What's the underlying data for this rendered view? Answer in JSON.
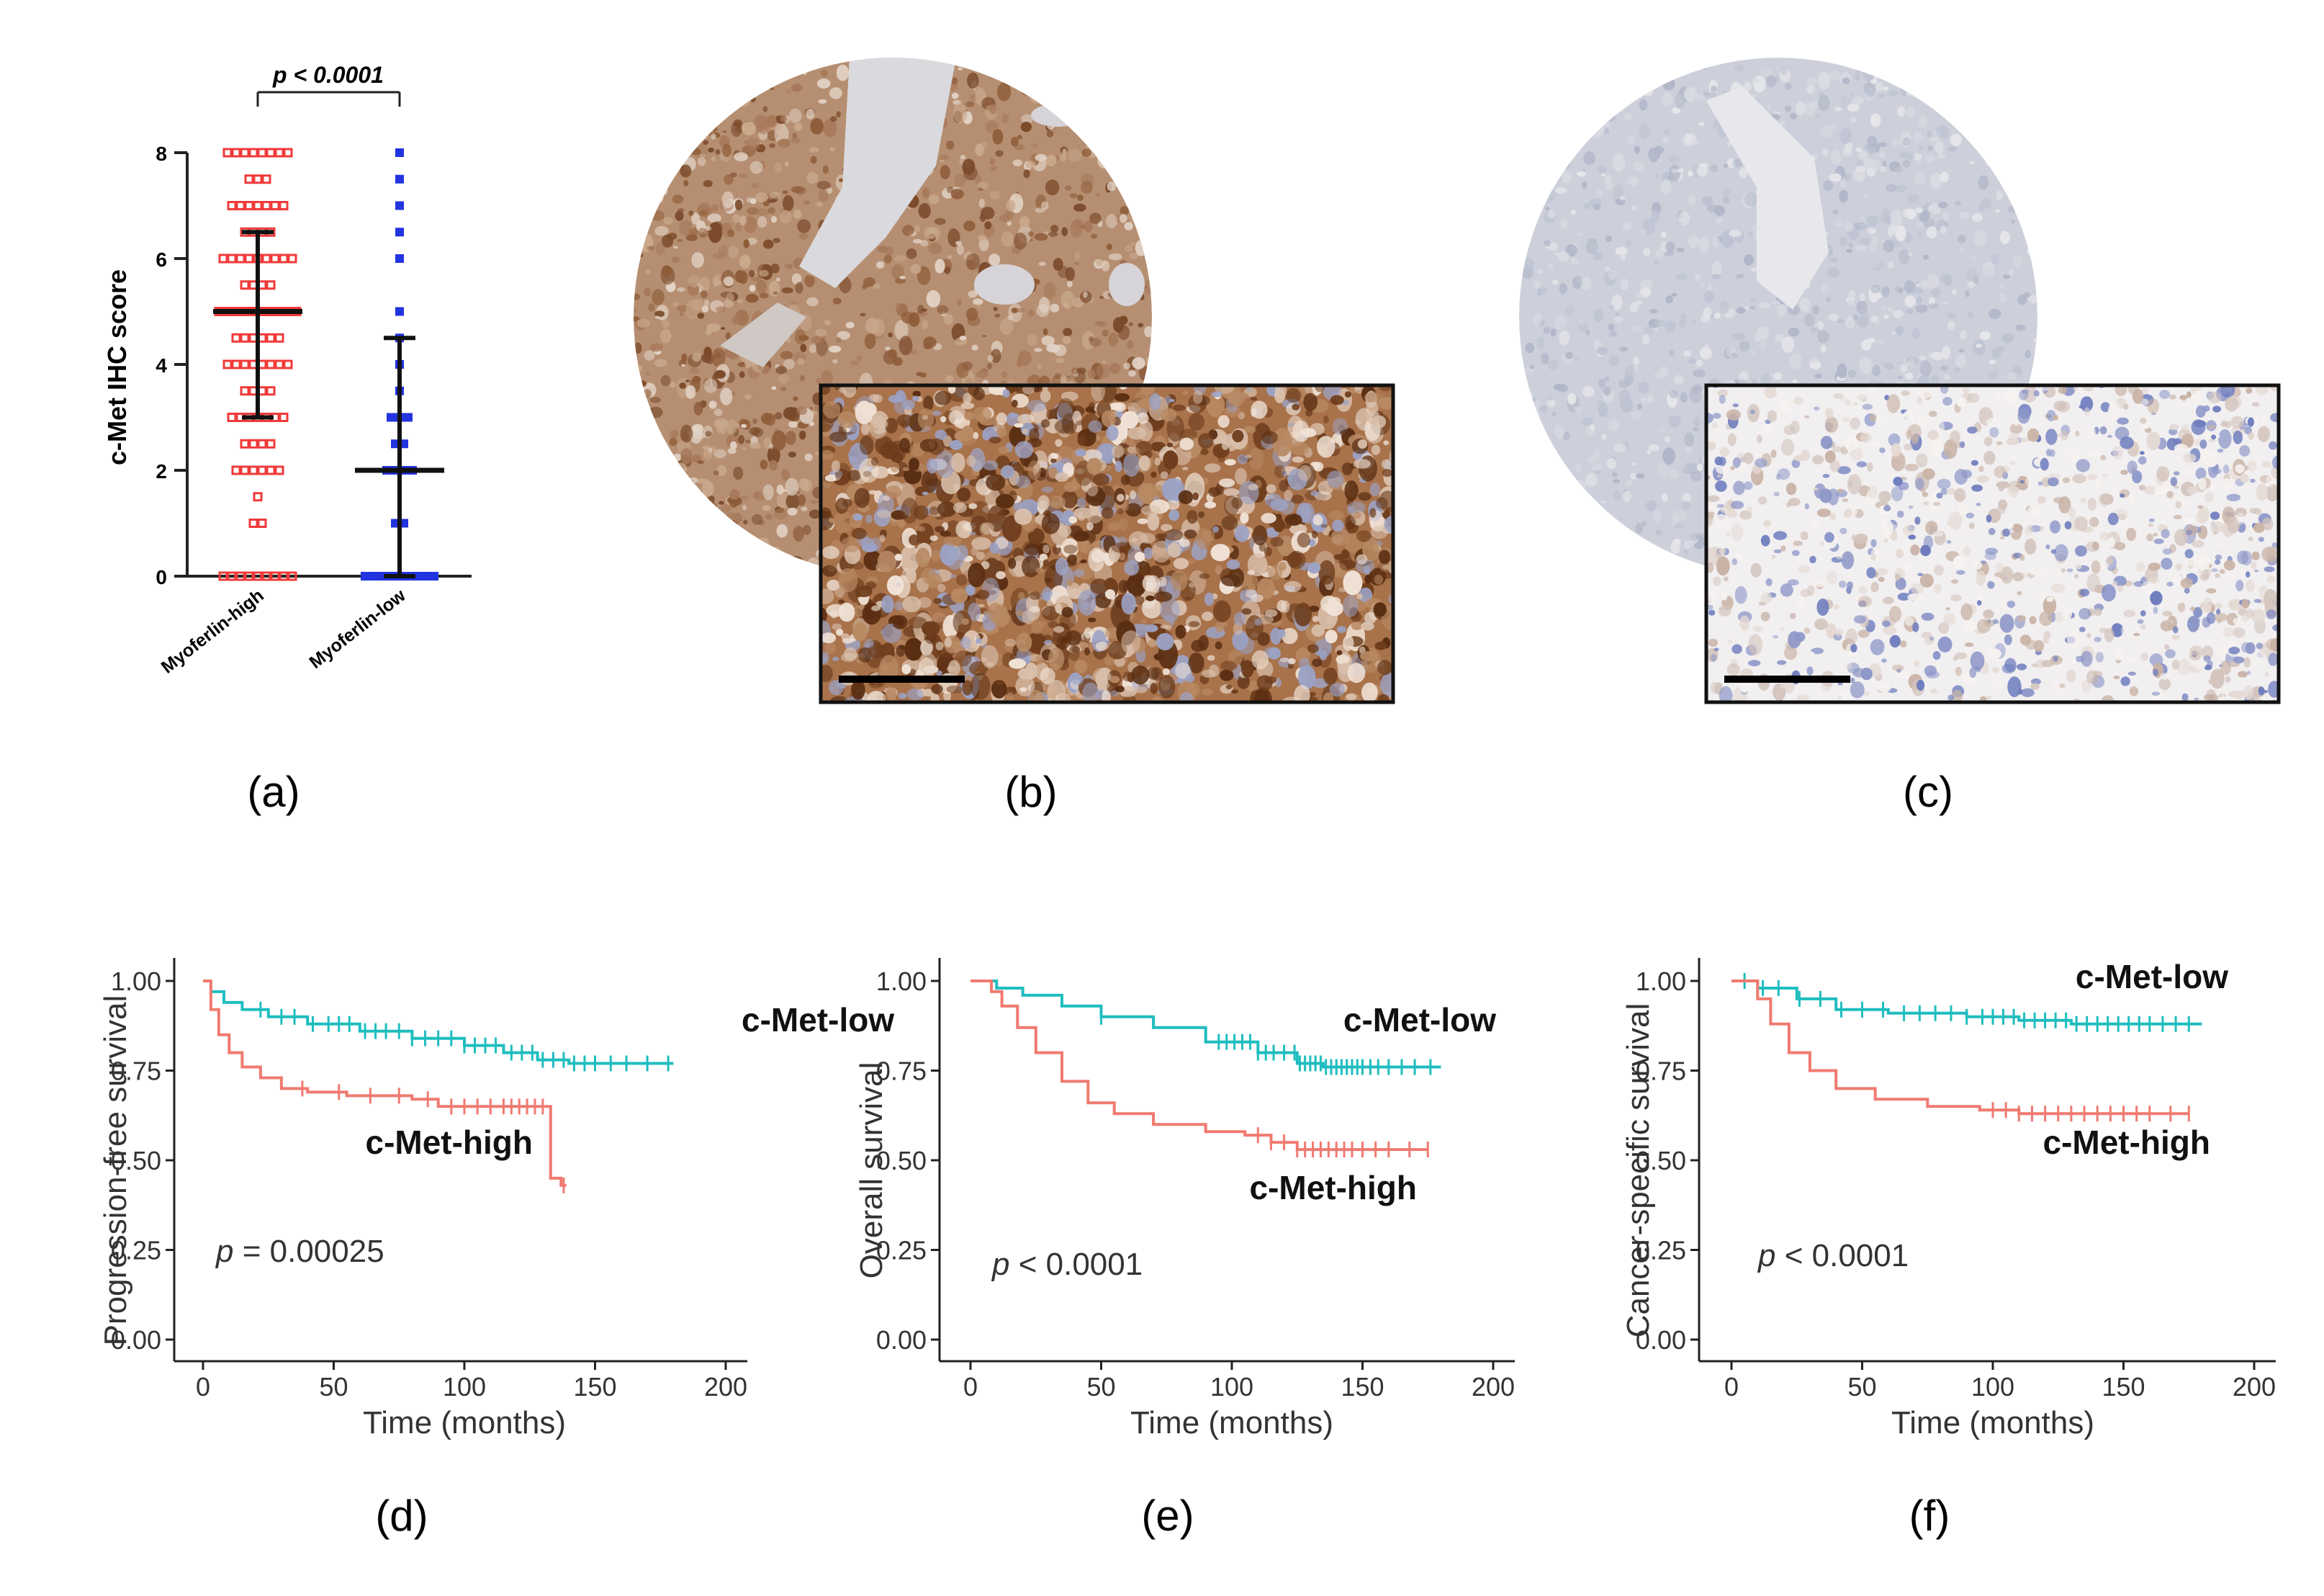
{
  "panel_labels": {
    "a": "(a)",
    "b": "(b)",
    "c": "(c)",
    "d": "(d)",
    "e": "(e)",
    "f": "(f)"
  },
  "colors": {
    "high": "#F07A70",
    "low": "#1FBDBF",
    "scatter_high": "#F03A3A",
    "scatter_low": "#2233E0",
    "axis": "#222222",
    "stain_brown": "#9A6236",
    "stain_tissue_high": "#B0876A",
    "stain_tissue_low": "#C9CDD9",
    "scale_bar": "#000000"
  },
  "images": {
    "b": {
      "description_icon": "ihc-high-expression-core",
      "inset_icon": "ihc-high-zoom-inset"
    },
    "c": {
      "description_icon": "ihc-low-expression-core",
      "inset_icon": "ihc-low-zoom-inset"
    }
  },
  "chart_data": [
    {
      "id": "a",
      "type": "scatter",
      "ylabel": "c-Met IHC score",
      "categories": [
        "Myoferlin-high",
        "Myoferlin-low"
      ],
      "ylim": [
        0,
        8
      ],
      "yticks": [
        "0",
        "2",
        "4",
        "6",
        "8"
      ],
      "significance": "p < 0.0001",
      "series": [
        {
          "name": "Myoferlin-high",
          "mean": 5,
          "sd_upper": 6.5,
          "sd_lower": 3,
          "levels": [
            {
              "value": 0,
              "count": 9
            },
            {
              "value": 1,
              "count": 2
            },
            {
              "value": 1.5,
              "count": 1
            },
            {
              "value": 2,
              "count": 6
            },
            {
              "value": 2.5,
              "count": 4
            },
            {
              "value": 3,
              "count": 7
            },
            {
              "value": 3.5,
              "count": 4
            },
            {
              "value": 4,
              "count": 8
            },
            {
              "value": 4.5,
              "count": 6
            },
            {
              "value": 5,
              "count": 10
            },
            {
              "value": 5.5,
              "count": 4
            },
            {
              "value": 6,
              "count": 9
            },
            {
              "value": 6.5,
              "count": 4
            },
            {
              "value": 7,
              "count": 7
            },
            {
              "value": 7.5,
              "count": 3
            },
            {
              "value": 8,
              "count": 8
            }
          ]
        },
        {
          "name": "Myoferlin-low",
          "mean": 2,
          "sd_upper": 4.5,
          "sd_lower": 0,
          "levels": [
            {
              "value": 0,
              "count": 9
            },
            {
              "value": 1,
              "count": 2
            },
            {
              "value": 2,
              "count": 4
            },
            {
              "value": 2.5,
              "count": 2
            },
            {
              "value": 3,
              "count": 3
            },
            {
              "value": 3.5,
              "count": 1
            },
            {
              "value": 4,
              "count": 1
            },
            {
              "value": 4.5,
              "count": 1
            },
            {
              "value": 5,
              "count": 1
            },
            {
              "value": 6,
              "count": 1
            },
            {
              "value": 6.5,
              "count": 1
            },
            {
              "value": 7,
              "count": 1
            },
            {
              "value": 7.5,
              "count": 1
            },
            {
              "value": 8,
              "count": 1
            }
          ]
        }
      ]
    },
    {
      "id": "d",
      "type": "line",
      "ylabel": "Progression-free survival",
      "xlabel": "Time (months)",
      "xlim": [
        0,
        200
      ],
      "ylim": [
        0,
        1
      ],
      "xticks": [
        "0",
        "50",
        "100",
        "150",
        "200"
      ],
      "yticks": [
        "0.00",
        "0.25",
        "0.50",
        "0.75",
        "1.00"
      ],
      "p_prefix": "p",
      "p_text": " = 0.00025",
      "series": [
        {
          "name": "c-Met-low",
          "label": "c-Met-low",
          "points": [
            [
              0,
              1
            ],
            [
              3,
              0.97
            ],
            [
              8,
              0.94
            ],
            [
              15,
              0.92
            ],
            [
              25,
              0.9
            ],
            [
              40,
              0.88
            ],
            [
              60,
              0.86
            ],
            [
              80,
              0.84
            ],
            [
              100,
              0.82
            ],
            [
              115,
              0.8
            ],
            [
              128,
              0.78
            ],
            [
              140,
              0.77
            ],
            [
              180,
              0.77
            ]
          ],
          "censor": [
            22,
            30,
            35,
            42,
            48,
            52,
            56,
            62,
            66,
            70,
            75,
            80,
            85,
            90,
            95,
            100,
            104,
            108,
            112,
            118,
            122,
            126,
            130,
            134,
            138,
            142,
            146,
            150,
            156,
            162,
            170,
            178
          ]
        },
        {
          "name": "c-Met-high",
          "label": "c-Met-high",
          "points": [
            [
              0,
              1
            ],
            [
              3,
              0.92
            ],
            [
              6,
              0.85
            ],
            [
              10,
              0.8
            ],
            [
              15,
              0.76
            ],
            [
              22,
              0.73
            ],
            [
              30,
              0.7
            ],
            [
              40,
              0.69
            ],
            [
              55,
              0.68
            ],
            [
              80,
              0.67
            ],
            [
              90,
              0.65
            ],
            [
              120,
              0.65
            ],
            [
              133,
              0.65
            ],
            [
              133,
              0.45
            ],
            [
              137,
              0.43
            ],
            [
              139,
              0.43
            ]
          ],
          "censor": [
            38,
            52,
            64,
            75,
            86,
            95,
            100,
            105,
            110,
            115,
            118,
            121,
            124,
            127,
            130,
            138
          ]
        }
      ]
    },
    {
      "id": "e",
      "type": "line",
      "ylabel": "Overall survival",
      "xlabel": "Time (months)",
      "xlim": [
        0,
        200
      ],
      "ylim": [
        0,
        1
      ],
      "xticks": [
        "0",
        "50",
        "100",
        "150",
        "200"
      ],
      "yticks": [
        "0.00",
        "0.25",
        "0.50",
        "0.75",
        "1.00"
      ],
      "p_prefix": "p",
      "p_text": " < 0.0001",
      "series": [
        {
          "name": "c-Met-low",
          "label": "c-Met-low",
          "points": [
            [
              0,
              1
            ],
            [
              10,
              0.98
            ],
            [
              20,
              0.96
            ],
            [
              35,
              0.93
            ],
            [
              50,
              0.9
            ],
            [
              70,
              0.87
            ],
            [
              90,
              0.83
            ],
            [
              110,
              0.8
            ],
            [
              125,
              0.77
            ],
            [
              135,
              0.76
            ],
            [
              180,
              0.76
            ]
          ],
          "censor": [
            50,
            95,
            98,
            101,
            104,
            107,
            110,
            113,
            116,
            120,
            124,
            126,
            128,
            130,
            132,
            134,
            136,
            138,
            140,
            142,
            144,
            146,
            148,
            150,
            153,
            156,
            160,
            165,
            170,
            176
          ]
        },
        {
          "name": "c-Met-high",
          "label": "c-Met-high",
          "points": [
            [
              0,
              1
            ],
            [
              8,
              0.97
            ],
            [
              12,
              0.93
            ],
            [
              18,
              0.87
            ],
            [
              25,
              0.8
            ],
            [
              35,
              0.72
            ],
            [
              45,
              0.66
            ],
            [
              55,
              0.63
            ],
            [
              70,
              0.6
            ],
            [
              90,
              0.58
            ],
            [
              105,
              0.57
            ],
            [
              115,
              0.55
            ],
            [
              125,
              0.53
            ],
            [
              175,
              0.53
            ]
          ],
          "censor": [
            110,
            115,
            120,
            125,
            128,
            131,
            134,
            137,
            140,
            143,
            146,
            150,
            155,
            160,
            168,
            175
          ]
        }
      ]
    },
    {
      "id": "f",
      "type": "line",
      "ylabel": "Cancer-specific survival",
      "xlabel": "Time (months)",
      "xlim": [
        0,
        200
      ],
      "ylim": [
        0,
        1
      ],
      "xticks": [
        "0",
        "50",
        "100",
        "150",
        "200"
      ],
      "yticks": [
        "0.00",
        "0.25",
        "0.50",
        "0.75",
        "1.00"
      ],
      "p_prefix": "p",
      "p_text": " < 0.0001",
      "series": [
        {
          "name": "c-Met-low",
          "label": "c-Met-low",
          "points": [
            [
              0,
              1
            ],
            [
              10,
              0.98
            ],
            [
              25,
              0.95
            ],
            [
              40,
              0.92
            ],
            [
              60,
              0.91
            ],
            [
              90,
              0.9
            ],
            [
              110,
              0.89
            ],
            [
              130,
              0.88
            ],
            [
              180,
              0.88
            ]
          ],
          "censor": [
            5,
            12,
            18,
            26,
            34,
            42,
            50,
            58,
            66,
            72,
            78,
            84,
            90,
            96,
            100,
            104,
            108,
            112,
            116,
            120,
            124,
            128,
            132,
            136,
            140,
            144,
            148,
            152,
            156,
            160,
            165,
            170,
            175
          ]
        },
        {
          "name": "c-Met-high",
          "label": "c-Met-high",
          "points": [
            [
              0,
              1
            ],
            [
              10,
              0.95
            ],
            [
              15,
              0.88
            ],
            [
              22,
              0.8
            ],
            [
              30,
              0.75
            ],
            [
              40,
              0.7
            ],
            [
              55,
              0.67
            ],
            [
              75,
              0.65
            ],
            [
              95,
              0.64
            ],
            [
              110,
              0.63
            ],
            [
              175,
              0.63
            ]
          ],
          "censor": [
            100,
            105,
            110,
            115,
            120,
            125,
            130,
            135,
            140,
            145,
            150,
            155,
            160,
            168,
            175
          ]
        }
      ]
    }
  ]
}
